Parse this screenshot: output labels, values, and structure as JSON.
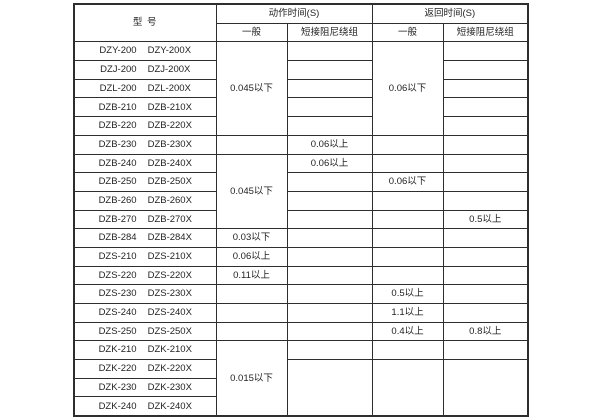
{
  "table": {
    "header": {
      "model_label": "型  号",
      "action_group": "动作时间(S)",
      "return_group": "返回时间(S)",
      "sub_general": "一般",
      "sub_damped": "短接阻尼绕组"
    },
    "values_legend": {
      "below": "以下",
      "above": "以上"
    },
    "colors": {
      "border": "#2e2e2e",
      "text": "#1f1f1f",
      "background": "#ffffff"
    },
    "rows": [
      {
        "models": [
          "DZY-200",
          "DZY-200X"
        ],
        "cells": [
          {
            "c": "ag",
            "t": "0.045以下",
            "rs": 5
          },
          {
            "c": "ad",
            "t": ""
          },
          {
            "c": "rg",
            "t": "0.06以下",
            "rs": 5
          },
          {
            "c": "rd",
            "t": ""
          }
        ]
      },
      {
        "models": [
          "DZJ-200",
          "DZJ-200X"
        ],
        "cells": [
          {
            "c": "ad",
            "t": ""
          },
          {
            "c": "rd",
            "t": ""
          }
        ]
      },
      {
        "models": [
          "DZL-200",
          "DZL-200X"
        ],
        "cells": [
          {
            "c": "ad",
            "t": ""
          },
          {
            "c": "rd",
            "t": ""
          }
        ]
      },
      {
        "models": [
          "DZB-210",
          "DZB-210X"
        ],
        "cells": [
          {
            "c": "ad",
            "t": ""
          },
          {
            "c": "rd",
            "t": ""
          }
        ]
      },
      {
        "models": [
          "DZB-220",
          "DZB-220X"
        ],
        "cells": [
          {
            "c": "ad",
            "t": ""
          },
          {
            "c": "rd",
            "t": ""
          }
        ]
      },
      {
        "models": [
          "DZB-230",
          "DZB-230X"
        ],
        "cells": [
          {
            "c": "ag",
            "t": ""
          },
          {
            "c": "ad",
            "t": "0.06以上"
          },
          {
            "c": "rg",
            "t": ""
          },
          {
            "c": "rd",
            "t": ""
          }
        ]
      },
      {
        "models": [
          "DZB-240",
          "DZB-240X"
        ],
        "cells": [
          {
            "c": "ag",
            "t": "0.045以下",
            "rs": 4
          },
          {
            "c": "ad",
            "t": "0.06以上"
          },
          {
            "c": "rg",
            "t": ""
          },
          {
            "c": "rd",
            "t": ""
          }
        ]
      },
      {
        "models": [
          "DZB-250",
          "DZB-250X"
        ],
        "cells": [
          {
            "c": "ad",
            "t": ""
          },
          {
            "c": "rg",
            "t": "0.06以下"
          },
          {
            "c": "rd",
            "t": ""
          }
        ]
      },
      {
        "models": [
          "DZB-260",
          "DZB-260X"
        ],
        "cells": [
          {
            "c": "ad",
            "t": ""
          },
          {
            "c": "rg",
            "t": ""
          },
          {
            "c": "rd",
            "t": ""
          }
        ]
      },
      {
        "models": [
          "DZB-270",
          "DZB-270X"
        ],
        "cells": [
          {
            "c": "ad",
            "t": ""
          },
          {
            "c": "rg",
            "t": ""
          },
          {
            "c": "rd",
            "t": "0.5以上"
          }
        ]
      },
      {
        "models": [
          "DZB-284",
          "DZB-284X"
        ],
        "cells": [
          {
            "c": "ag",
            "t": "0.03以下"
          },
          {
            "c": "ad",
            "t": ""
          },
          {
            "c": "rg",
            "t": ""
          },
          {
            "c": "rd",
            "t": ""
          }
        ]
      },
      {
        "models": [
          "DZS-210",
          "DZS-210X"
        ],
        "cells": [
          {
            "c": "ag",
            "t": "0.06以上"
          },
          {
            "c": "ad",
            "t": ""
          },
          {
            "c": "rg",
            "t": ""
          },
          {
            "c": "rd",
            "t": ""
          }
        ]
      },
      {
        "models": [
          "DZS-220",
          "DZS-220X"
        ],
        "cells": [
          {
            "c": "ag",
            "t": "0.11以上"
          },
          {
            "c": "ad",
            "t": ""
          },
          {
            "c": "rg",
            "t": ""
          },
          {
            "c": "rd",
            "t": ""
          }
        ]
      },
      {
        "models": [
          "DZS-230",
          "DZS-230X"
        ],
        "cells": [
          {
            "c": "ag",
            "t": ""
          },
          {
            "c": "ad",
            "t": ""
          },
          {
            "c": "rg",
            "t": "0.5以上"
          },
          {
            "c": "rd",
            "t": ""
          }
        ]
      },
      {
        "models": [
          "DZS-240",
          "DZS-240X"
        ],
        "cells": [
          {
            "c": "ag",
            "t": ""
          },
          {
            "c": "ad",
            "t": ""
          },
          {
            "c": "rg",
            "t": "1.1以上"
          },
          {
            "c": "rd",
            "t": ""
          }
        ]
      },
      {
        "models": [
          "DZS-250",
          "DZS-250X"
        ],
        "cells": [
          {
            "c": "ag",
            "t": ""
          },
          {
            "c": "ad",
            "t": ""
          },
          {
            "c": "rg",
            "t": "0.4以上"
          },
          {
            "c": "rd",
            "t": "0.8以上"
          }
        ]
      },
      {
        "models": [
          "DZK-210",
          "DZK-210X"
        ],
        "cells": [
          {
            "c": "ag",
            "t": "0.015以下",
            "rs": 4
          },
          {
            "c": "ad",
            "t": ""
          },
          {
            "c": "rg",
            "t": ""
          },
          {
            "c": "rd",
            "t": ""
          }
        ]
      },
      {
        "models": [
          "DZK-220",
          "DZK-220X"
        ],
        "cells": [
          {
            "c": "ad",
            "t": "",
            "rs": 3
          },
          {
            "c": "rg",
            "t": "",
            "rs": 3
          },
          {
            "c": "rd",
            "t": "",
            "rs": 3
          }
        ]
      },
      {
        "models": [
          "DZK-230",
          "DZK-230X"
        ],
        "cells": []
      },
      {
        "models": [
          "DZK-240",
          "DZK-240X"
        ],
        "cells": []
      }
    ]
  }
}
